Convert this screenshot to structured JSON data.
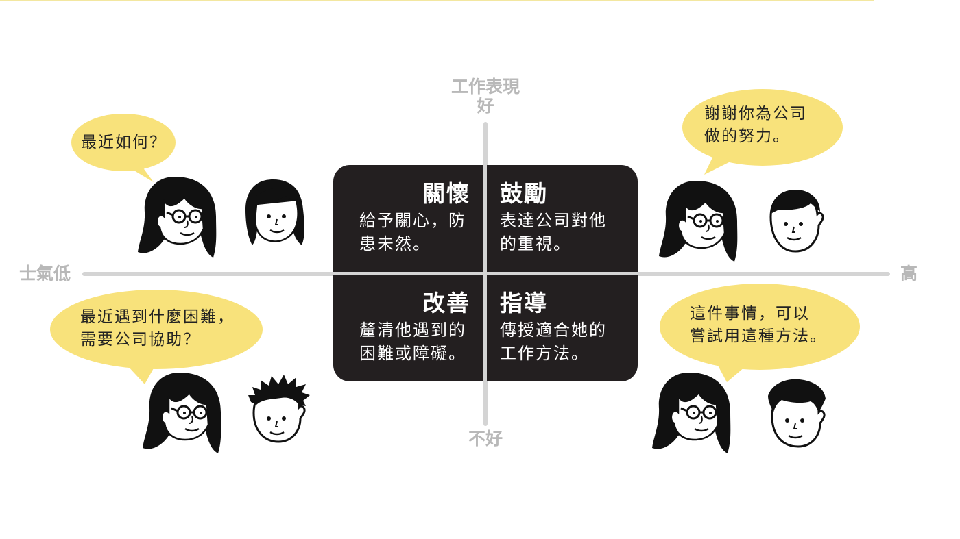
{
  "axes": {
    "y_top_title": "工作表現",
    "y_top": "好",
    "y_bottom": "不好",
    "x_left": "士氣低",
    "x_right": "高"
  },
  "quadrants": {
    "top_left": {
      "title": "關懷",
      "desc1": "給予關心，防",
      "desc2": "患未然。"
    },
    "top_right": {
      "title": "鼓勵",
      "desc1": "表達公司對他",
      "desc2": "的重視。"
    },
    "bottom_left": {
      "title": "改善",
      "desc1": "釐清他遇到的",
      "desc2": "困難或障礙。"
    },
    "bottom_right": {
      "title": "指導",
      "desc1": "傳授適合她的",
      "desc2": "工作方法。"
    }
  },
  "bubbles": {
    "top_left": {
      "line1": "最近如何？"
    },
    "top_right": {
      "line1": "謝謝你為公司",
      "line2": "做的努力。"
    },
    "bottom_left": {
      "line1": "最近遇到什麼困難，",
      "line2": "需要公司協助？"
    },
    "bottom_right": {
      "line1": "這件事情，可以",
      "line2": "嘗試用這種方法。"
    }
  },
  "colors": {
    "matrix": "#231f20",
    "axis": "#d4d4d4",
    "axis_label": "#b8b8b8",
    "bubble": "#f8e27b"
  },
  "icons": [
    "manager-woman-face",
    "employee-girl-face",
    "employee-man-face",
    "employee-spiky-hair-face",
    "employee-wavy-hair-face"
  ]
}
